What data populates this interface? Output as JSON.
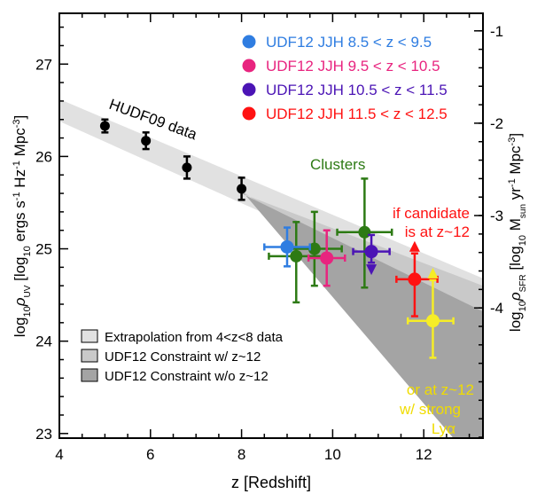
{
  "chart_data": {
    "type": "scatter",
    "title": "",
    "xlabel": "z [Redshift]",
    "ylabel_left": {
      "prefix": "log",
      "sub1": "10",
      "rho": "ρ",
      "sub2": "UV",
      "units_open": " [log",
      "units_sub": "10",
      "units_tail": " ergs s",
      "exp1": "-1",
      "mid1": " Hz",
      "exp2": "-1",
      "mid2": " Mpc",
      "exp3": "-3",
      "close": "]"
    },
    "ylabel_right": {
      "prefix": "log",
      "sub1": "10",
      "rho": "ρ",
      "sub2": "SFR",
      "units_open": " [log",
      "units_sub": "10",
      "units_mid": " M",
      "units_msub": "sun",
      "units_yr": " yr",
      "exp1": "-1",
      "mid1": " Mpc",
      "exp2": "-3",
      "close": "]"
    },
    "xlim": [
      4,
      13.3
    ],
    "ylim": [
      22.95,
      27.55
    ],
    "xticks": [
      4,
      6,
      8,
      10,
      12
    ],
    "xtick_labels": [
      "4",
      "6",
      "8",
      "10",
      "12"
    ],
    "yticks": [
      23,
      24,
      25,
      26,
      27
    ],
    "ytick_labels": [
      "23",
      "24",
      "25",
      "26",
      "27"
    ],
    "right_yticks": [
      {
        "value": 27.36,
        "label": "-1"
      },
      {
        "value": 26.36,
        "label": "-2"
      },
      {
        "value": 25.36,
        "label": "-3"
      },
      {
        "value": 24.36,
        "label": "-4"
      }
    ],
    "hudf09_points": [
      {
        "z": 5.0,
        "y": 26.33,
        "err": 0.07
      },
      {
        "z": 5.9,
        "y": 26.17,
        "err": 0.09
      },
      {
        "z": 6.8,
        "y": 25.88,
        "err": 0.12
      },
      {
        "z": 8.0,
        "y": 25.65,
        "err": 0.12
      }
    ],
    "hudf09_label": "HUDF09 data",
    "udf12_points": [
      {
        "name": "8.5<z<9.5",
        "z": 9.0,
        "y": 25.02,
        "xerr": [
          0.5,
          0.5
        ],
        "yerr": [
          0.21,
          0.21
        ],
        "color": "#2f7de1"
      },
      {
        "name": "9.5<z<10.5",
        "z": 9.87,
        "y": 24.9,
        "xerr": [
          0.4,
          0.4
        ],
        "yerr": [
          0.3,
          0.3
        ],
        "color": "#e8247f"
      },
      {
        "name": "10.5<z<11.5",
        "z": 10.85,
        "y": 24.97,
        "xerr": [
          0.4,
          0.4
        ],
        "yerr": [
          0.12,
          0.18
        ],
        "upper_limit": true,
        "color": "#4b14b5"
      },
      {
        "name": "11.5<z<12.5",
        "z": 11.8,
        "y": 24.67,
        "xerr": [
          0.4,
          0.5
        ],
        "yerr": [
          0.4,
          0.28
        ],
        "lower_limit": true,
        "color": "#ff1212"
      },
      {
        "name": "z~12 Lya",
        "z": 12.2,
        "y": 24.22,
        "xerr": [
          0.55,
          0.45
        ],
        "yerr": [
          0.4,
          0.44
        ],
        "color": "#f6ed27"
      }
    ],
    "cluster_points": [
      {
        "z": 9.2,
        "y": 24.92,
        "xerr": [
          0.6,
          0.6
        ],
        "yerr": [
          0.5,
          0.37
        ]
      },
      {
        "z": 9.6,
        "y": 25.0,
        "xerr": [
          0.6,
          0.6
        ],
        "yerr": [
          0.4,
          0.4
        ]
      },
      {
        "z": 10.7,
        "y": 25.18,
        "xerr": [
          0.6,
          0.6
        ],
        "yerr": [
          0.6,
          0.58
        ]
      }
    ],
    "cluster_color": "#2d7a14",
    "black_color": "#000000",
    "bands": [
      {
        "name": "extrapolation",
        "color": "#e1e1e1",
        "polygon": [
          [
            4,
            26.62
          ],
          [
            13.3,
            24.68
          ],
          [
            13.3,
            24.32
          ],
          [
            4,
            26.38
          ]
        ]
      },
      {
        "name": "constraint_with_z12",
        "color": "#c9c9c9",
        "polygon": [
          [
            8,
            25.6
          ],
          [
            13.3,
            24.6
          ],
          [
            13.3,
            23.73
          ],
          [
            8,
            25.63
          ]
        ]
      },
      {
        "name": "constraint_without_z12",
        "color": "#a4a4a4",
        "polygon": [
          [
            8,
            25.6
          ],
          [
            13.3,
            24.32
          ],
          [
            13.3,
            22.95
          ],
          [
            12.65,
            22.95
          ],
          [
            8,
            25.63
          ]
        ]
      }
    ],
    "legend": [
      {
        "label": "UDF12 JJH 8.5 < z < 9.5",
        "color": "#2f7de1"
      },
      {
        "label": "UDF12 JJH 9.5 < z < 10.5",
        "color": "#e8247f"
      },
      {
        "label": "UDF12 JJH 10.5 < z < 11.5",
        "color": "#4b14b5"
      },
      {
        "label": "UDF12 JJH 11.5 < z < 12.5",
        "color": "#ff1212"
      }
    ],
    "band_legend": [
      {
        "label": "Extrapolation from 4<z<8 data",
        "color": "#e1e1e1"
      },
      {
        "label": "UDF12 Constraint w/ z~12",
        "color": "#c9c9c9"
      },
      {
        "label": "UDF12 Constraint w/o z~12",
        "color": "#a4a4a4"
      }
    ],
    "annotations": {
      "clusters": "Clusters",
      "candidate_line1": "if candidate",
      "candidate_line2": "is at z~12",
      "lya_line1": "or at z~12",
      "lya_line2": "w/ strong",
      "lya_line3": "Lyα",
      "yellow_color": "#f6ed27"
    }
  }
}
